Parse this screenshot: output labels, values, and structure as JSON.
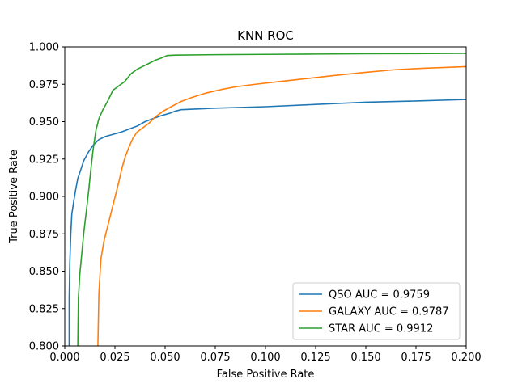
{
  "chart_data": {
    "type": "line",
    "title": "KNN ROC",
    "xlabel": "False Positive Rate",
    "ylabel": "True Positive Rate",
    "xlim": [
      0.0,
      0.2
    ],
    "ylim": [
      0.8,
      1.0
    ],
    "xticks": [
      "0.000",
      "0.025",
      "0.050",
      "0.075",
      "0.100",
      "0.125",
      "0.150",
      "0.175",
      "0.200"
    ],
    "yticks": [
      "0.800",
      "0.825",
      "0.850",
      "0.875",
      "0.900",
      "0.925",
      "0.950",
      "0.975",
      "1.000"
    ],
    "grid": false,
    "legend_position": "lower-right",
    "series": [
      {
        "name": "QSO AUC = 0.9759",
        "color": "#1f77b4",
        "points": [
          [
            0.0022,
            0.8
          ],
          [
            0.0022,
            0.832
          ],
          [
            0.0025,
            0.855
          ],
          [
            0.003,
            0.875
          ],
          [
            0.0035,
            0.888
          ],
          [
            0.0045,
            0.897
          ],
          [
            0.0055,
            0.905
          ],
          [
            0.0065,
            0.912
          ],
          [
            0.008,
            0.918
          ],
          [
            0.0095,
            0.924
          ],
          [
            0.0115,
            0.929
          ],
          [
            0.014,
            0.934
          ],
          [
            0.017,
            0.938
          ],
          [
            0.02,
            0.94
          ],
          [
            0.024,
            0.9415
          ],
          [
            0.028,
            0.943
          ],
          [
            0.032,
            0.945
          ],
          [
            0.036,
            0.947
          ],
          [
            0.04,
            0.95
          ],
          [
            0.044,
            0.952
          ],
          [
            0.048,
            0.954
          ],
          [
            0.052,
            0.9555
          ],
          [
            0.055,
            0.957
          ],
          [
            0.058,
            0.958
          ],
          [
            0.075,
            0.959
          ],
          [
            0.1,
            0.96
          ],
          [
            0.125,
            0.9615
          ],
          [
            0.15,
            0.963
          ],
          [
            0.175,
            0.9638
          ],
          [
            0.2,
            0.9648
          ]
        ]
      },
      {
        "name": "GALAXY AUC = 0.9787",
        "color": "#ff7f0e",
        "points": [
          [
            0.0165,
            0.8
          ],
          [
            0.017,
            0.835
          ],
          [
            0.018,
            0.858
          ],
          [
            0.0195,
            0.87
          ],
          [
            0.021,
            0.878
          ],
          [
            0.0225,
            0.886
          ],
          [
            0.024,
            0.894
          ],
          [
            0.0255,
            0.902
          ],
          [
            0.027,
            0.91
          ],
          [
            0.0285,
            0.919
          ],
          [
            0.03,
            0.926
          ],
          [
            0.032,
            0.933
          ],
          [
            0.034,
            0.939
          ],
          [
            0.036,
            0.943
          ],
          [
            0.039,
            0.946
          ],
          [
            0.042,
            0.949
          ],
          [
            0.045,
            0.953
          ],
          [
            0.049,
            0.957
          ],
          [
            0.053,
            0.96
          ],
          [
            0.058,
            0.9635
          ],
          [
            0.063,
            0.966
          ],
          [
            0.07,
            0.969
          ],
          [
            0.078,
            0.9715
          ],
          [
            0.086,
            0.9735
          ],
          [
            0.095,
            0.975
          ],
          [
            0.105,
            0.9765
          ],
          [
            0.115,
            0.978
          ],
          [
            0.125,
            0.9795
          ],
          [
            0.135,
            0.981
          ],
          [
            0.15,
            0.983
          ],
          [
            0.165,
            0.9848
          ],
          [
            0.18,
            0.9858
          ],
          [
            0.2,
            0.9868
          ]
        ]
      },
      {
        "name": "STAR AUC = 0.9912",
        "color": "#2ca02c",
        "points": [
          [
            0.0065,
            0.8
          ],
          [
            0.0068,
            0.832
          ],
          [
            0.0075,
            0.848
          ],
          [
            0.0085,
            0.862
          ],
          [
            0.0095,
            0.876
          ],
          [
            0.011,
            0.893
          ],
          [
            0.012,
            0.905
          ],
          [
            0.013,
            0.918
          ],
          [
            0.014,
            0.93
          ],
          [
            0.0155,
            0.944
          ],
          [
            0.017,
            0.952
          ],
          [
            0.019,
            0.958
          ],
          [
            0.0215,
            0.964
          ],
          [
            0.024,
            0.971
          ],
          [
            0.027,
            0.974
          ],
          [
            0.03,
            0.977
          ],
          [
            0.033,
            0.982
          ],
          [
            0.036,
            0.985
          ],
          [
            0.039,
            0.987
          ],
          [
            0.042,
            0.989
          ],
          [
            0.045,
            0.991
          ],
          [
            0.048,
            0.9925
          ],
          [
            0.051,
            0.9942
          ],
          [
            0.055,
            0.9945
          ],
          [
            0.075,
            0.9948
          ],
          [
            0.1,
            0.995
          ],
          [
            0.125,
            0.9952
          ],
          [
            0.15,
            0.9954
          ],
          [
            0.175,
            0.9955
          ],
          [
            0.2,
            0.9957
          ]
        ]
      }
    ]
  }
}
